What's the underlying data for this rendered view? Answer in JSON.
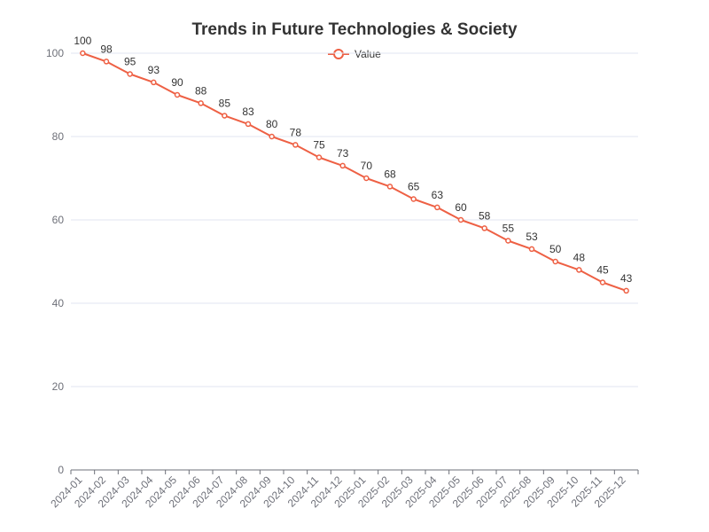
{
  "chart_data": {
    "type": "line",
    "title": "Trends in Future Technologies & Society",
    "xlabel": "",
    "ylabel": "",
    "ylim": [
      0,
      100
    ],
    "y_ticks": [
      0,
      20,
      40,
      60,
      80,
      100
    ],
    "grid": true,
    "legend_position": "top-center",
    "categories": [
      "2024-01",
      "2024-02",
      "2024-03",
      "2024-04",
      "2024-05",
      "2024-06",
      "2024-07",
      "2024-08",
      "2024-09",
      "2024-10",
      "2024-11",
      "2024-12",
      "2025-01",
      "2025-02",
      "2025-03",
      "2025-04",
      "2025-05",
      "2025-06",
      "2025-07",
      "2025-08",
      "2025-09",
      "2025-10",
      "2025-11",
      "2025-12"
    ],
    "series": [
      {
        "name": "Value",
        "color": "#ee6044",
        "values": [
          100,
          98,
          95,
          93,
          90,
          88,
          85,
          83,
          80,
          78,
          75,
          73,
          70,
          68,
          65,
          63,
          60,
          58,
          55,
          53,
          50,
          48,
          45,
          43
        ],
        "show_data_labels": true
      }
    ]
  }
}
